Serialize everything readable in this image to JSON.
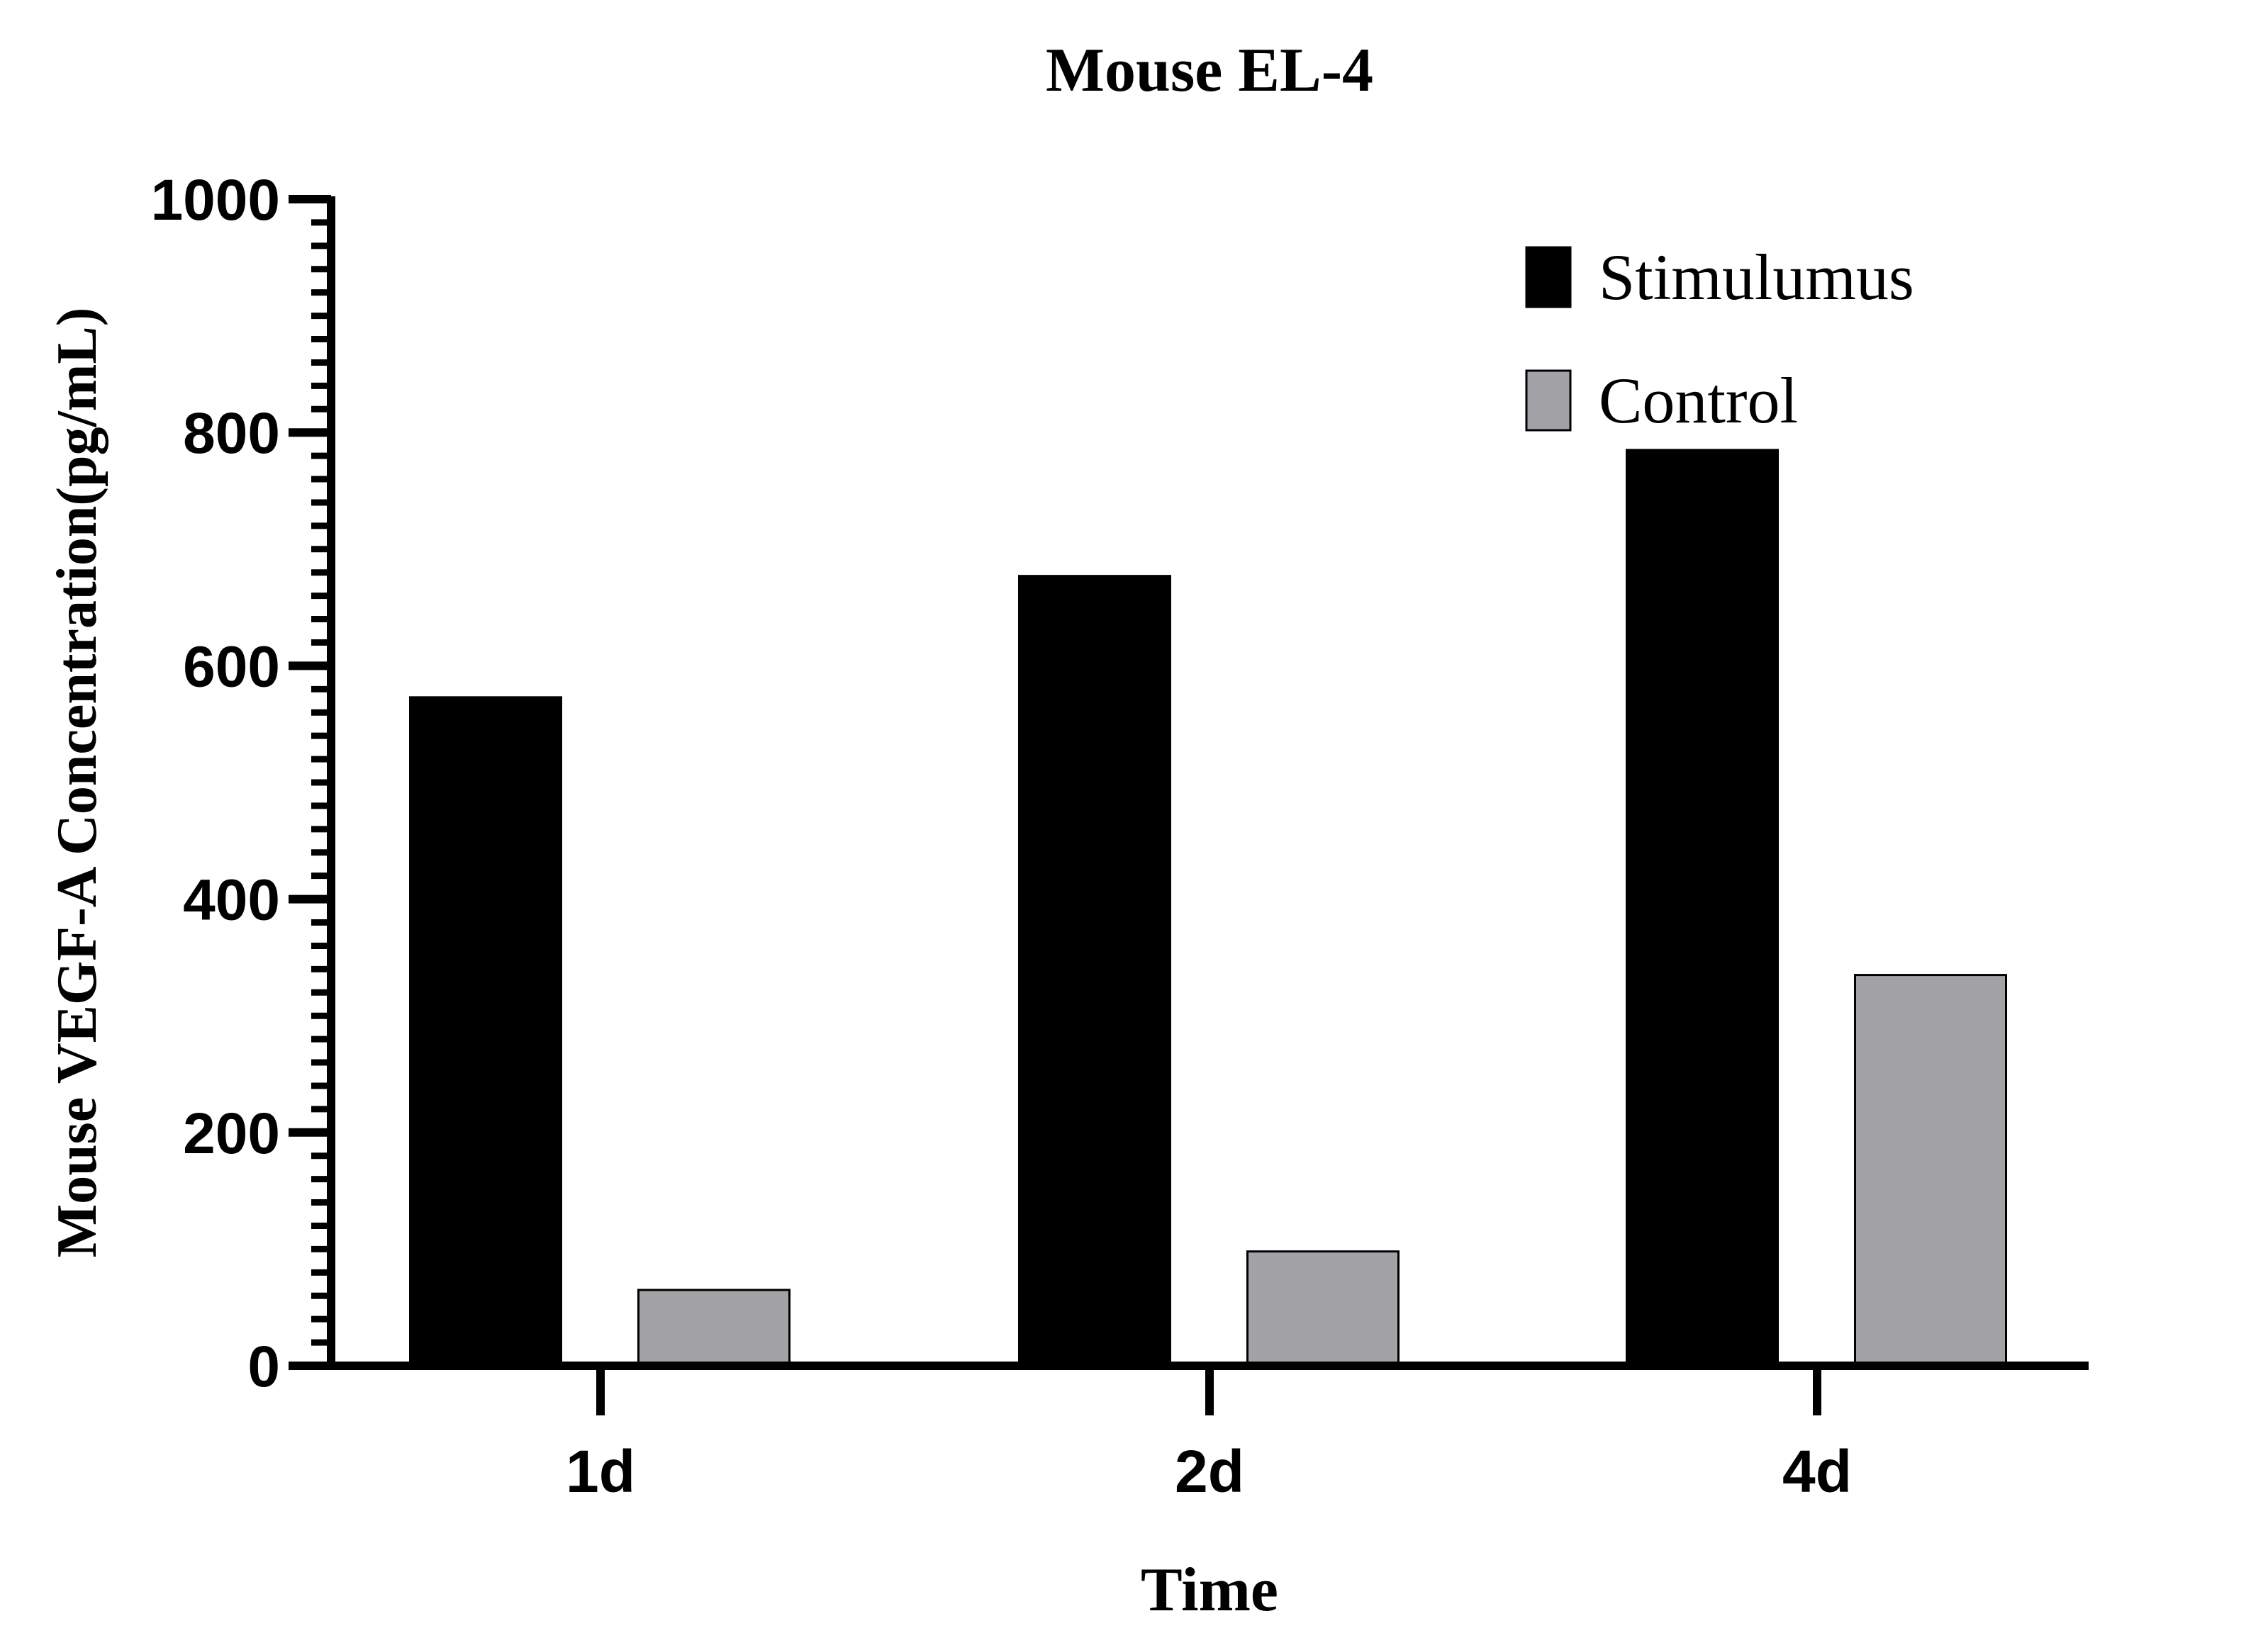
{
  "chart_data": {
    "type": "bar",
    "title": "Mouse EL-4",
    "xlabel": "Time",
    "ylabel": "Mouse VEGF-A Concentration(pg/mL)",
    "categories": [
      "1d",
      "2d",
      "4d"
    ],
    "series": [
      {
        "name": "Stimulumus",
        "values": [
          573,
          677,
          785
        ],
        "color": "#000000"
      },
      {
        "name": "Control",
        "values": [
          65,
          98,
          335
        ],
        "color": "#a3a3a7"
      }
    ],
    "ylim": [
      0,
      1000
    ],
    "yticks": [
      "0",
      "200",
      "400",
      "600",
      "800",
      "1000"
    ],
    "minor_tick_step": 20,
    "grid": false,
    "legend": "top-right"
  }
}
